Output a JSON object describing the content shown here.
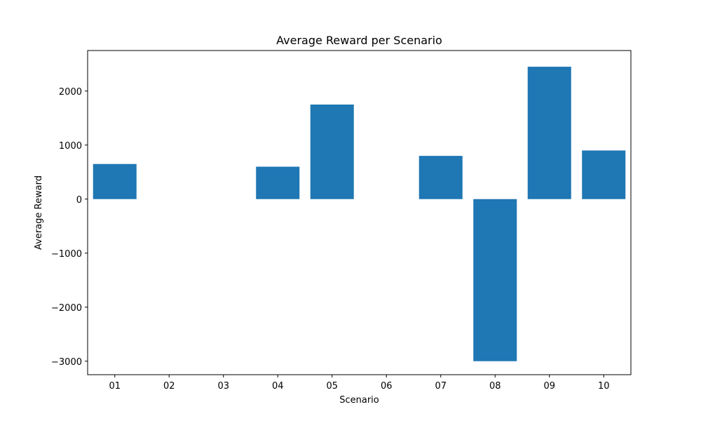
{
  "chart_data": {
    "type": "bar",
    "title": "Average Reward per Scenario",
    "xlabel": "Scenario",
    "ylabel": "Average Reward",
    "categories": [
      "01",
      "02",
      "03",
      "04",
      "05",
      "06",
      "07",
      "08",
      "09",
      "10"
    ],
    "values": [
      650,
      0,
      0,
      600,
      1750,
      0,
      800,
      -3000,
      2450,
      900
    ],
    "ylim": [
      -3250,
      2750
    ],
    "yticks": [
      -3000,
      -2000,
      -1000,
      0,
      1000,
      2000
    ],
    "ytick_labels": [
      "−3000",
      "−2000",
      "−1000",
      "0",
      "1000",
      "2000"
    ],
    "bar_color": "#1f77b4",
    "grid": false,
    "legend": "none"
  }
}
